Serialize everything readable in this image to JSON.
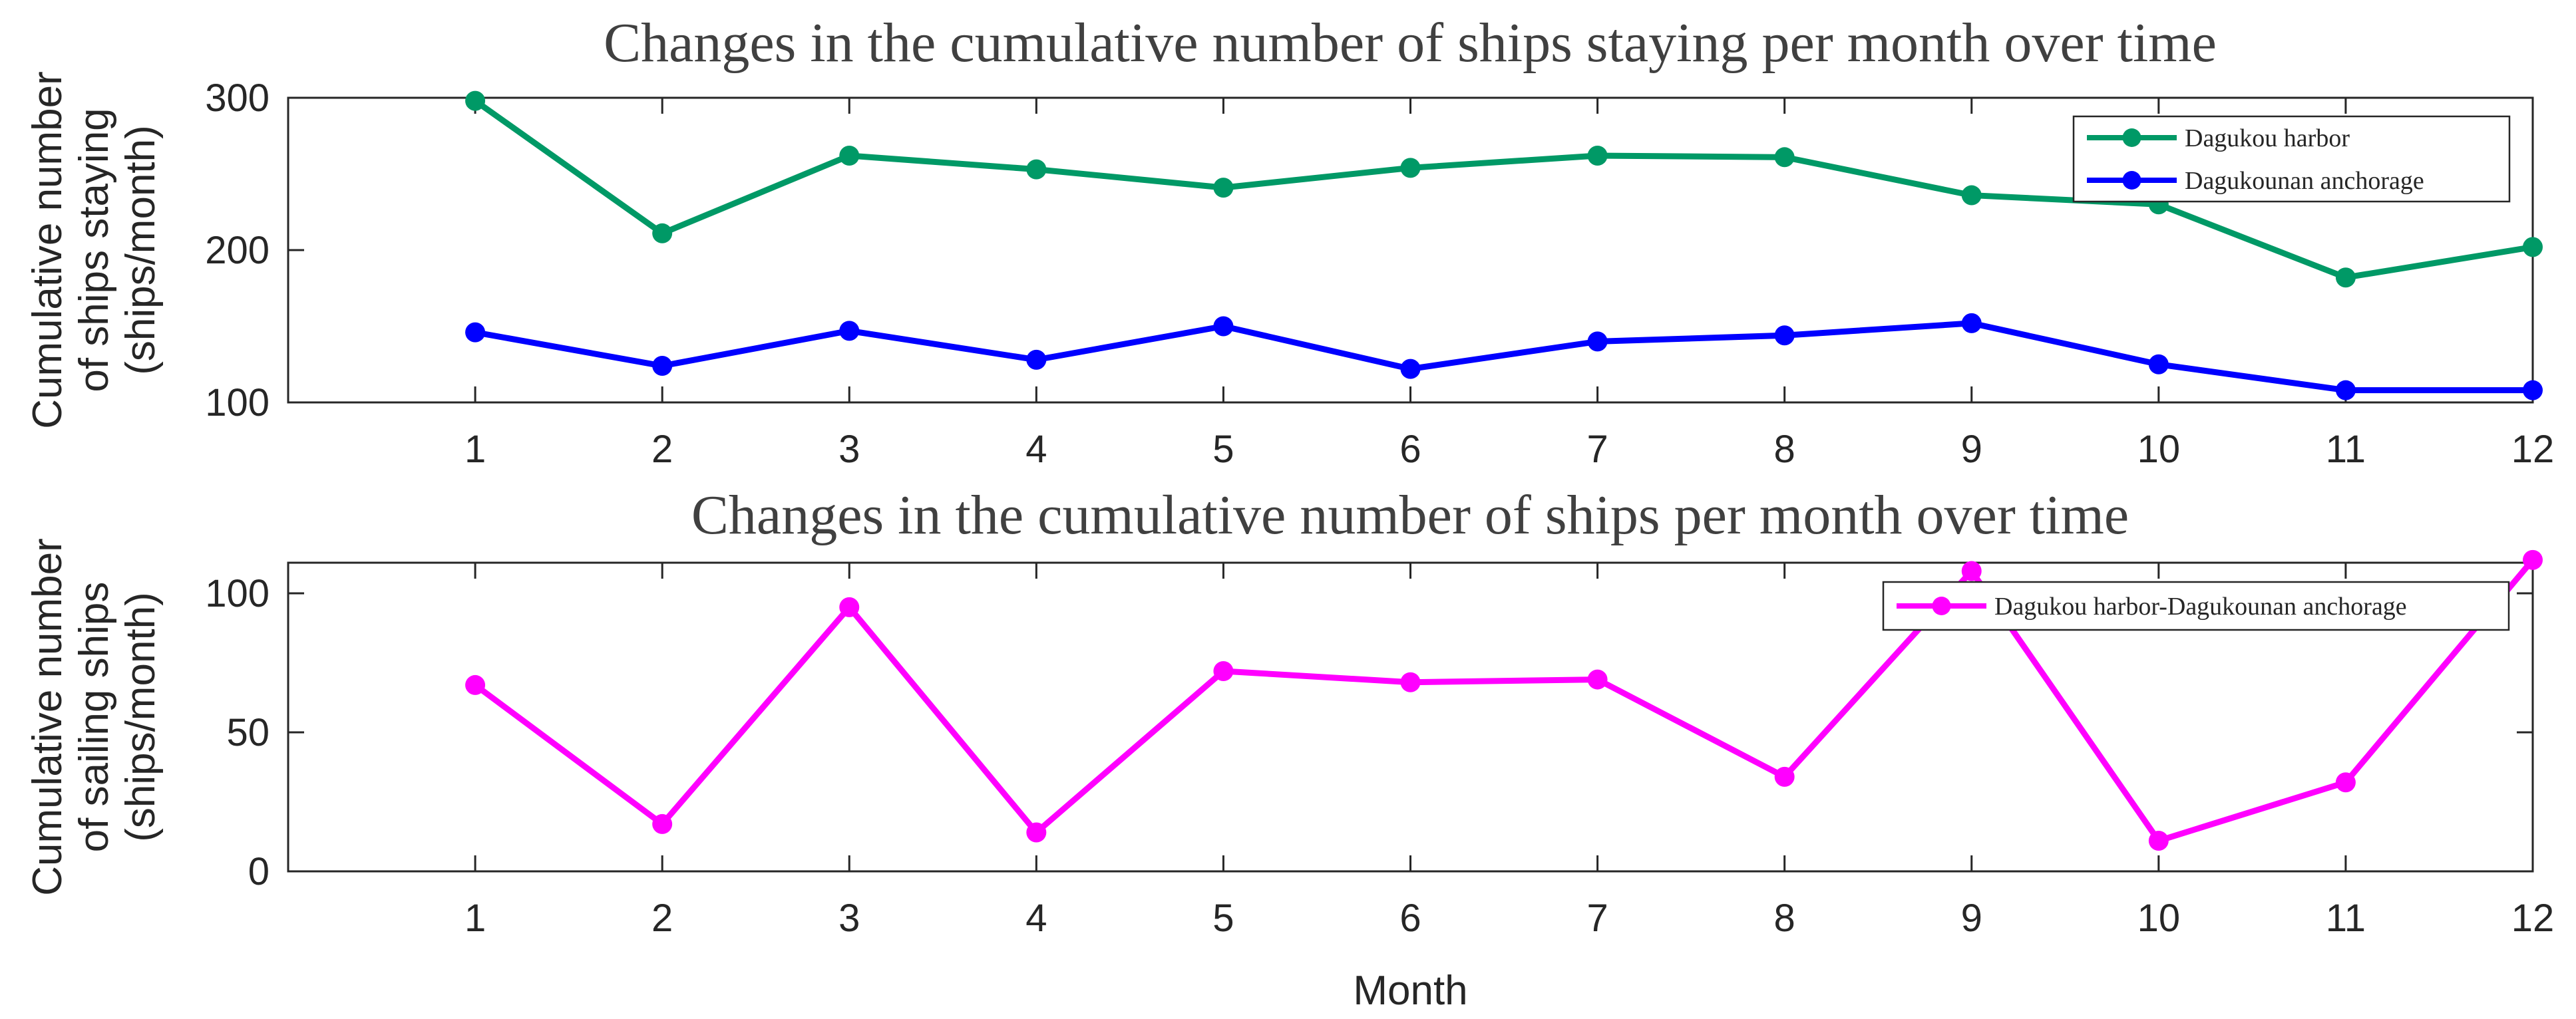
{
  "chart_data": [
    {
      "type": "line",
      "title": "Changes in the cumulative number of ships staying per month  over time",
      "ylabel_lines": [
        "Cumulative number",
        "of ships staying",
        "(ships/month)"
      ],
      "xlabel": "",
      "x": [
        1,
        2,
        3,
        4,
        5,
        6,
        7,
        8,
        9,
        10,
        11,
        12
      ],
      "xlim": [
        0,
        12
      ],
      "ylim": [
        100,
        300
      ],
      "yticks": [
        100,
        200,
        300
      ],
      "legend_position": "top-right",
      "series": [
        {
          "name": "Dagukou harbor",
          "color": "#009966",
          "values": [
            298,
            211,
            262,
            253,
            241,
            254,
            262,
            261,
            236,
            230,
            182,
            202
          ]
        },
        {
          "name": "Dagukounan anchorage",
          "color": "#0000ff",
          "values": [
            146,
            124,
            147,
            128,
            150,
            122,
            140,
            144,
            152,
            125,
            108,
            108
          ]
        }
      ]
    },
    {
      "type": "line",
      "title": "Changes in the cumulative number of ships per month over time",
      "ylabel_lines": [
        "Cumulative number",
        "of sailing ships",
        "(ships/month)"
      ],
      "xlabel": "Month",
      "x": [
        1,
        2,
        3,
        4,
        5,
        6,
        7,
        8,
        9,
        10,
        11,
        12
      ],
      "xlim": [
        0,
        12
      ],
      "ylim": [
        0,
        111
      ],
      "yticks": [
        0,
        50,
        100
      ],
      "legend_position": "top-right",
      "series": [
        {
          "name": "Dagukou harbor-Dagukounan anchorage",
          "color": "#ff00ff",
          "values": [
            67,
            17,
            95,
            14,
            72,
            68,
            69,
            34,
            108,
            11,
            32,
            112
          ]
        }
      ]
    }
  ]
}
